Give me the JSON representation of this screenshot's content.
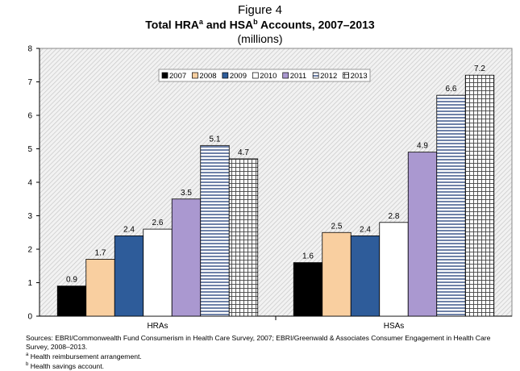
{
  "figure_label": "Figure 4",
  "title": {
    "p1": "Total HRA",
    "sup_a": "a",
    "p2": " and HSA",
    "sup_b": "b",
    "p3": " Accounts, 2007–2013"
  },
  "subtitle": "(millions)",
  "chart_data": {
    "type": "bar",
    "categories": [
      "HRAs",
      "HSAs"
    ],
    "series": [
      {
        "name": "2007",
        "values": [
          0.9,
          1.6
        ],
        "fill": "#000000",
        "pattern": "solid"
      },
      {
        "name": "2008",
        "values": [
          1.7,
          2.5
        ],
        "fill": "#f9cfa0",
        "pattern": "solid"
      },
      {
        "name": "2009",
        "values": [
          2.4,
          2.4
        ],
        "fill": "#2e5c9a",
        "pattern": "solid"
      },
      {
        "name": "2010",
        "values": [
          2.6,
          2.8
        ],
        "fill": "#ffffff",
        "pattern": "solid"
      },
      {
        "name": "2011",
        "values": [
          3.5,
          4.9
        ],
        "fill": "#aa98d0",
        "pattern": "solid"
      },
      {
        "name": "2012",
        "values": [
          5.1,
          6.6
        ],
        "fill": "#ffffff",
        "pattern": "horizontal-lines"
      },
      {
        "name": "2013",
        "values": [
          4.7,
          7.2
        ],
        "fill": "#ffffff",
        "pattern": "grid"
      }
    ],
    "data_labels": [
      [
        "0.9",
        "1.7",
        "2.4",
        "2.6",
        "3.5",
        "5.1",
        "4.7"
      ],
      [
        "1.6",
        "2.5",
        "2.4",
        "2.8",
        "4.9",
        "6.6",
        "7.2"
      ]
    ],
    "ylim": [
      0,
      8
    ],
    "yticks": [
      "0",
      "1",
      "2",
      "3",
      "4",
      "5",
      "6",
      "7",
      "8"
    ],
    "grid": false,
    "legend_position": "top-center",
    "plot_background": "hatched-gray"
  },
  "sources": {
    "line1": "Sources: EBRI/Commonwealth Fund Consumerism in Health Care Survey, 2007; EBRI/Greenwald & Associates Consumer Engagement in Health Care Survey, 2008–2013.",
    "note_a_mark": "a",
    "note_a": " Health reimbursement arrangement.",
    "note_b_mark": "b",
    "note_b": " Health savings account."
  }
}
